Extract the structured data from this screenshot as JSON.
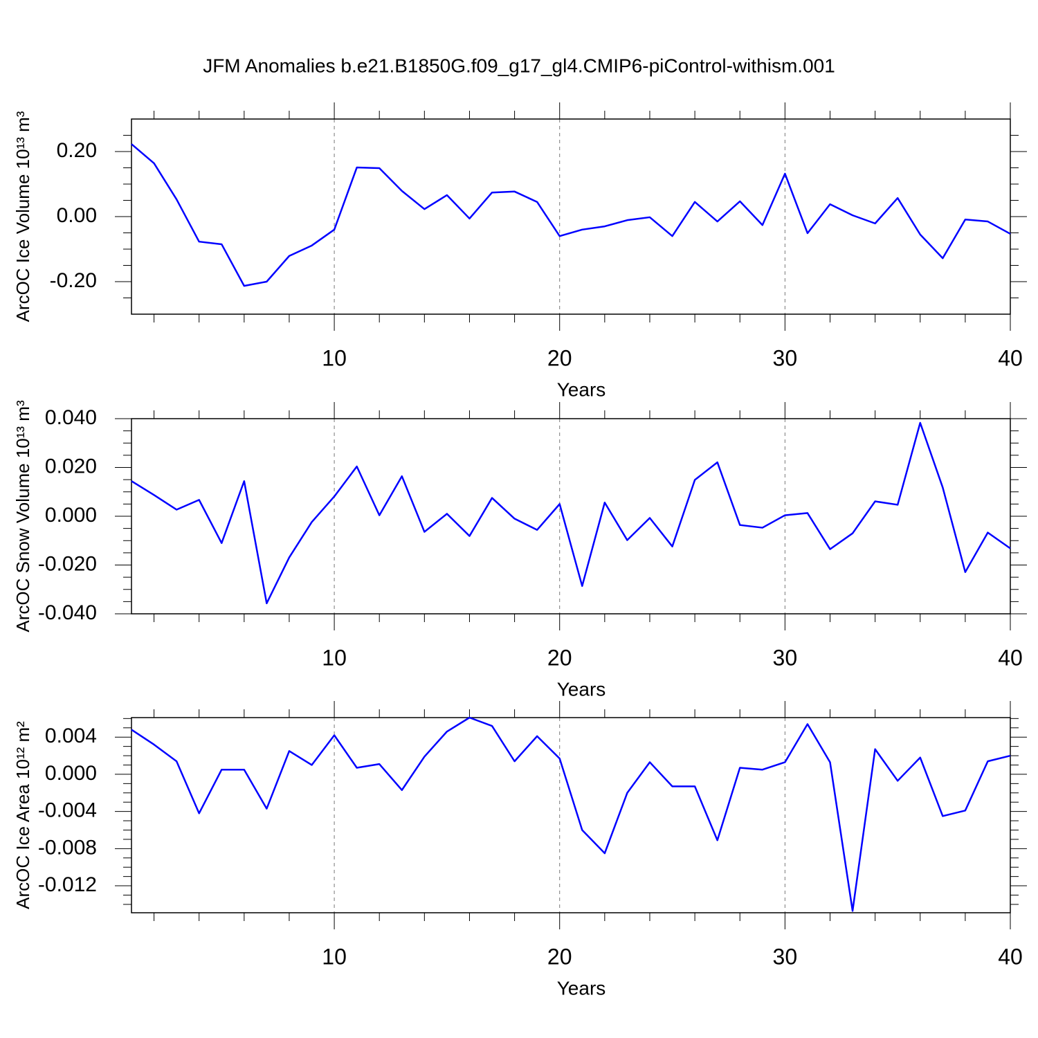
{
  "chart_data": [
    {
      "type": "line",
      "title": "JFM Anomalies b.e21.B1850G.f09_g17_gl4.CMIP6-piControl-withism.001",
      "xlabel": "Years",
      "ylabel": "ArcOC Ice Volume 10¹³ m³",
      "x": [
        1,
        2,
        3,
        4,
        5,
        6,
        7,
        8,
        9,
        10,
        11,
        12,
        13,
        14,
        15,
        16,
        17,
        18,
        19,
        20,
        21,
        22,
        23,
        24,
        25,
        26,
        27,
        28,
        29,
        30,
        31,
        32,
        33,
        34,
        35,
        36,
        37,
        38,
        39,
        40
      ],
      "series": [
        {
          "color": "#0000ff",
          "values": [
            0.223,
            0.164,
            0.053,
            -0.077,
            -0.085,
            -0.213,
            -0.2,
            -0.121,
            -0.089,
            -0.04,
            0.151,
            0.149,
            0.079,
            0.023,
            0.066,
            -0.006,
            0.074,
            0.077,
            0.045,
            -0.06,
            -0.04,
            -0.03,
            -0.011,
            -0.002,
            -0.06,
            0.045,
            -0.015,
            0.047,
            -0.026,
            0.132,
            -0.051,
            0.038,
            0.004,
            -0.021,
            0.057,
            -0.055,
            -0.128,
            -0.009,
            -0.015,
            -0.053
          ]
        }
      ],
      "xlim": [
        1,
        40
      ],
      "xticks": [
        10,
        20,
        30,
        40
      ],
      "xminorticks": [
        2,
        4,
        6,
        8,
        12,
        14,
        16,
        18,
        22,
        24,
        26,
        28,
        32,
        34,
        36,
        38
      ],
      "ylim": [
        -0.3,
        0.3
      ],
      "yticks": [
        {
          "value": -0.2,
          "label": "-0.20"
        },
        {
          "value": 0,
          "label": "0.00"
        },
        {
          "value": 0.2,
          "label": "0.20"
        }
      ],
      "yminorticks": [
        -0.25,
        -0.15,
        -0.1,
        -0.05,
        0.05,
        0.1,
        0.15,
        0.25
      ],
      "grid": true
    },
    {
      "type": "line",
      "xlabel": "Years",
      "ylabel": "ArcOC Snow Volume 10¹³ m³",
      "x": [
        1,
        2,
        3,
        4,
        5,
        6,
        7,
        8,
        9,
        10,
        11,
        12,
        13,
        14,
        15,
        16,
        17,
        18,
        19,
        20,
        21,
        22,
        23,
        24,
        25,
        26,
        27,
        28,
        29,
        30,
        31,
        32,
        33,
        34,
        35,
        36,
        37,
        38,
        39,
        40
      ],
      "series": [
        {
          "color": "#0000ff",
          "values": [
            0.0144,
            0.0087,
            0.0027,
            0.0067,
            -0.011,
            0.0144,
            -0.0357,
            -0.0169,
            -0.0024,
            0.0081,
            0.0204,
            0.0004,
            0.0164,
            -0.0064,
            0.001,
            -0.0081,
            0.0075,
            -0.001,
            -0.0056,
            0.005,
            -0.0286,
            0.0056,
            -0.0098,
            -0.0007,
            -0.0124,
            0.0149,
            0.0221,
            -0.0036,
            -0.0047,
            0.0004,
            0.0013,
            -0.0135,
            -0.007,
            0.0061,
            0.0047,
            0.0383,
            0.0118,
            -0.0229,
            -0.0067,
            -0.0132
          ]
        }
      ],
      "xlim": [
        1,
        40
      ],
      "xticks": [
        10,
        20,
        30,
        40
      ],
      "xminorticks": [
        2,
        4,
        6,
        8,
        12,
        14,
        16,
        18,
        22,
        24,
        26,
        28,
        32,
        34,
        36,
        38
      ],
      "ylim": [
        -0.04,
        0.04
      ],
      "yticks": [
        {
          "value": -0.04,
          "label": "-0.040"
        },
        {
          "value": -0.02,
          "label": "-0.020"
        },
        {
          "value": 0,
          "label": "0.000"
        },
        {
          "value": 0.02,
          "label": "0.020"
        },
        {
          "value": 0.04,
          "label": "0.040"
        }
      ],
      "yminorticks": [
        -0.035,
        -0.03,
        -0.025,
        -0.015,
        -0.01,
        -0.005,
        0.005,
        0.01,
        0.015,
        0.025,
        0.03,
        0.035
      ],
      "grid": true
    },
    {
      "type": "line",
      "xlabel": "Years",
      "ylabel": "ArcOC Ice Area 10¹² m²",
      "x": [
        1,
        2,
        3,
        4,
        5,
        6,
        7,
        8,
        9,
        10,
        11,
        12,
        13,
        14,
        15,
        16,
        17,
        18,
        19,
        20,
        21,
        22,
        23,
        24,
        25,
        26,
        27,
        28,
        29,
        30,
        31,
        32,
        33,
        34,
        35,
        36,
        37,
        38,
        39,
        40
      ],
      "series": [
        {
          "color": "#0000ff",
          "values": [
            0.0048,
            0.0032,
            0.0014,
            -0.0042,
            0.0005,
            0.0005,
            -0.0037,
            0.0025,
            0.001,
            0.0042,
            0.0007,
            0.0011,
            -0.0017,
            0.0019,
            0.0046,
            0.0061,
            0.0052,
            0.0014,
            0.0041,
            0.0017,
            -0.006,
            -0.0085,
            -0.002,
            0.0013,
            -0.0013,
            -0.0013,
            -0.0071,
            0.0007,
            0.0005,
            0.0013,
            0.0054,
            0.0013,
            -0.0147,
            0.0027,
            -0.0007,
            0.0018,
            -0.0045,
            -0.0039,
            0.0014,
            0.002
          ]
        }
      ],
      "xlim": [
        1,
        40
      ],
      "xticks": [
        10,
        20,
        30,
        40
      ],
      "xminorticks": [
        2,
        4,
        6,
        8,
        12,
        14,
        16,
        18,
        22,
        24,
        26,
        28,
        32,
        34,
        36,
        38
      ],
      "ylim": [
        -0.0149,
        0.0061
      ],
      "yticks": [
        {
          "value": -0.012,
          "label": "-0.012"
        },
        {
          "value": -0.008,
          "label": "-0.008"
        },
        {
          "value": -0.004,
          "label": "-0.004"
        },
        {
          "value": 0,
          "label": "0.000"
        },
        {
          "value": 0.004,
          "label": "0.004"
        }
      ],
      "yminorticks": [
        -0.014,
        -0.013,
        -0.011,
        -0.01,
        -0.009,
        -0.007,
        -0.006,
        -0.005,
        -0.003,
        -0.002,
        -0.001,
        0.001,
        0.002,
        0.003,
        0.005,
        0.006
      ],
      "grid": true
    }
  ]
}
